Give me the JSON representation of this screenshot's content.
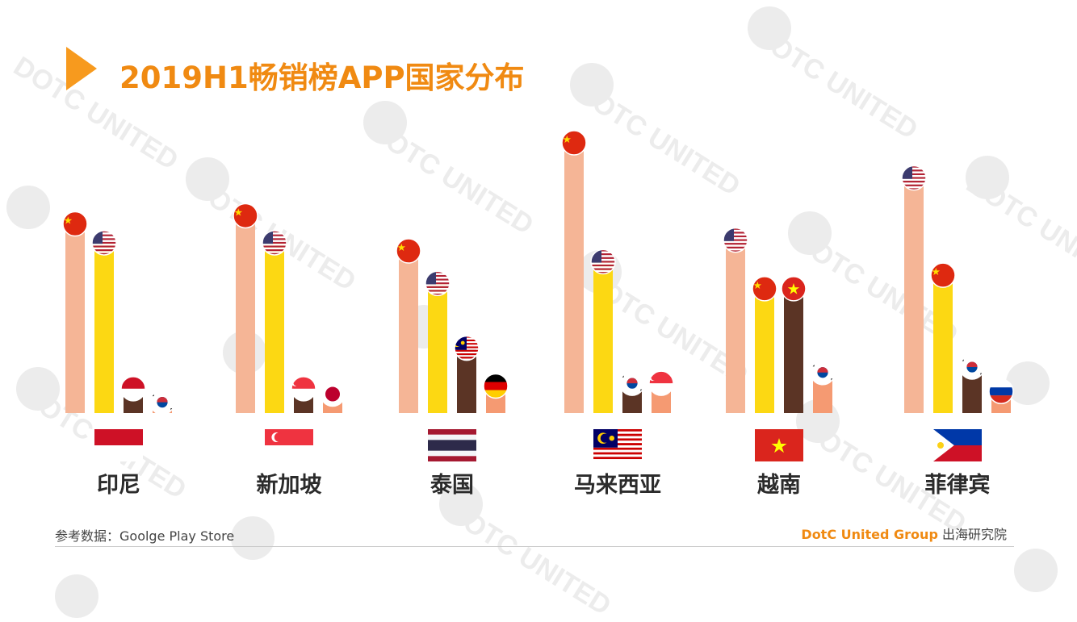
{
  "title": "2019H1畅销榜APP国家分布",
  "watermark": "DOTC UNITED",
  "source": "参考数据：Goolge Play Store",
  "brand": {
    "name": "DotC United Group",
    "suffix": "出海研究院"
  },
  "colors": {
    "accent": "#f08a12",
    "bar_1": "#f5b596",
    "bar_2": "#fcd813",
    "bar_3": "#5b3425",
    "bar_4": "#f59a72"
  },
  "chart_data": {
    "type": "bar",
    "title": "2019H1畅销榜APP国家分布",
    "xlabel": "",
    "ylabel": "",
    "note": "relative bar heights, no numeric axis printed",
    "groups": [
      {
        "market": "印尼",
        "market_flag": "indonesia",
        "bars": [
          {
            "origin": "china",
            "value": 0.7
          },
          {
            "origin": "usa",
            "value": 0.63
          },
          {
            "origin": "indonesia",
            "value": 0.09
          },
          {
            "origin": "korea",
            "value": 0.04
          }
        ]
      },
      {
        "market": "新加坡",
        "market_flag": "singapore",
        "bars": [
          {
            "origin": "china",
            "value": 0.73
          },
          {
            "origin": "usa",
            "value": 0.63
          },
          {
            "origin": "singapore",
            "value": 0.09
          },
          {
            "origin": "japan",
            "value": 0.07
          }
        ]
      },
      {
        "market": "泰国",
        "market_flag": "thailand",
        "bars": [
          {
            "origin": "china",
            "value": 0.6
          },
          {
            "origin": "usa",
            "value": 0.48
          },
          {
            "origin": "malaysia",
            "value": 0.24
          },
          {
            "origin": "germany",
            "value": 0.1
          }
        ]
      },
      {
        "market": "马来西亚",
        "market_flag": "malaysia",
        "bars": [
          {
            "origin": "china",
            "value": 1.0
          },
          {
            "origin": "usa",
            "value": 0.56
          },
          {
            "origin": "korea",
            "value": 0.11
          },
          {
            "origin": "singapore",
            "value": 0.11
          }
        ]
      },
      {
        "market": "越南",
        "market_flag": "vietnam",
        "bars": [
          {
            "origin": "usa",
            "value": 0.64
          },
          {
            "origin": "china",
            "value": 0.46
          },
          {
            "origin": "vietnam",
            "value": 0.46
          },
          {
            "origin": "korea",
            "value": 0.15
          }
        ]
      },
      {
        "market": "菲律宾",
        "market_flag": "philippines",
        "bars": [
          {
            "origin": "usa",
            "value": 0.87
          },
          {
            "origin": "china",
            "value": 0.51
          },
          {
            "origin": "korea",
            "value": 0.17
          },
          {
            "origin": "russia",
            "value": 0.08
          }
        ]
      }
    ]
  }
}
